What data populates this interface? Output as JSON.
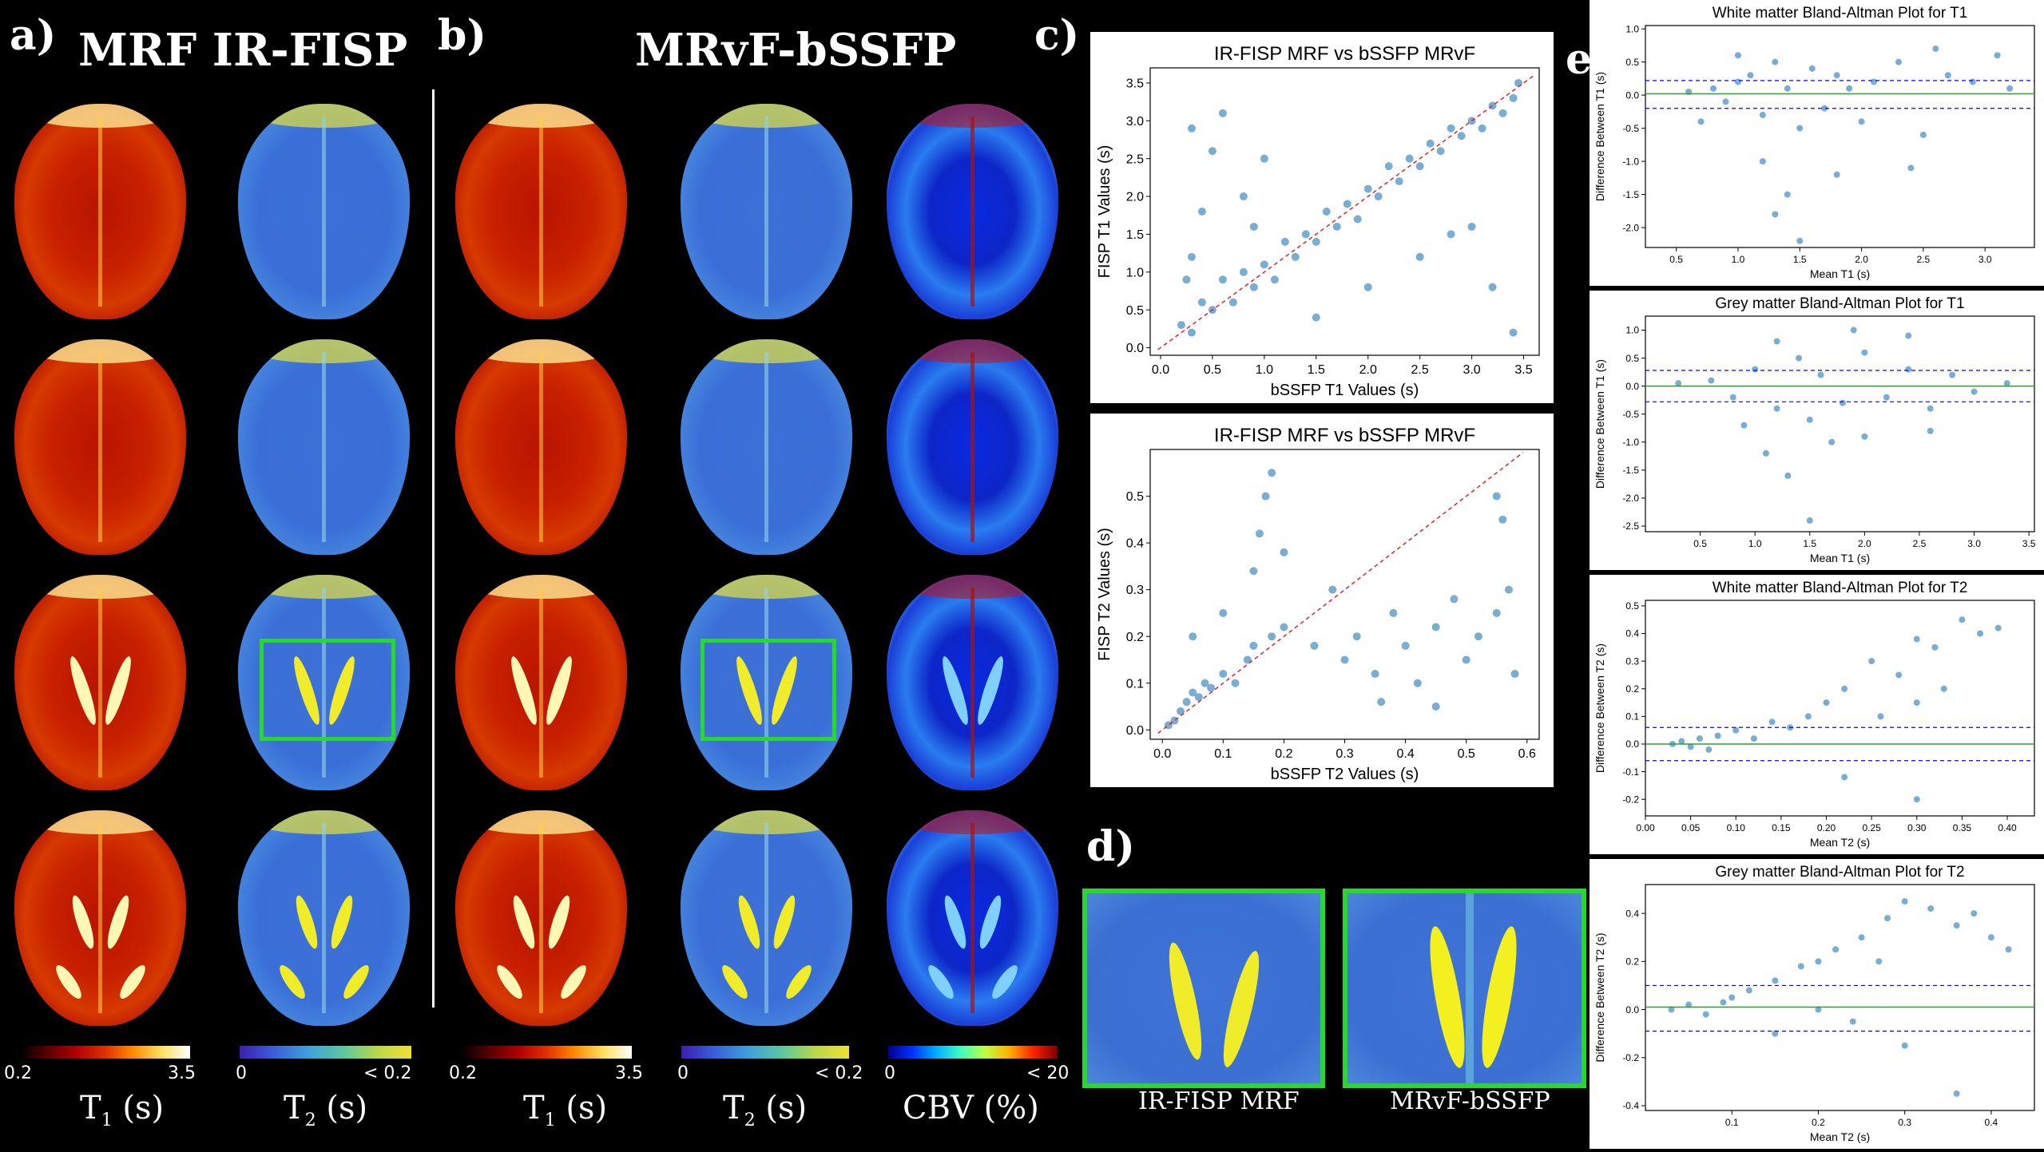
{
  "panels": {
    "a": {
      "label": "a)",
      "title": "MRF IR-FISP"
    },
    "b": {
      "label": "b)",
      "title": "MRvF-bSSFP"
    },
    "c": {
      "label": "c)"
    },
    "d": {
      "label": "d)"
    },
    "e": {
      "label": "e)"
    }
  },
  "colorbars": {
    "t1_a": {
      "min": "0.2",
      "max": "3.5",
      "unit_main": "T",
      "unit_sub": "1",
      "unit_rest": " (s)"
    },
    "t2_a": {
      "min": "0",
      "max": "< 0.2",
      "unit_main": "T",
      "unit_sub": "2",
      "unit_rest": " (s)"
    },
    "t1_b": {
      "min": "0.2",
      "max": "3.5",
      "unit_main": "T",
      "unit_sub": "1",
      "unit_rest": " (s)"
    },
    "t2_b": {
      "min": "0",
      "max": "< 0.2",
      "unit_main": "T",
      "unit_sub": "2",
      "unit_rest": " (s)"
    },
    "cbv_b": {
      "min": "0",
      "max": "< 20",
      "unit": "CBV (%)"
    }
  },
  "colors": {
    "t1_map": "#c82000",
    "t2_map": "#3a6fd8",
    "cbv_map": "#0c26c8",
    "roi_box": "#28d82a",
    "scatter": "#1f77b4",
    "identity": "#d62728",
    "mean_line": "#2ca02c",
    "limits": "#0000ff"
  },
  "zoom": {
    "left_caption": "IR-FISP MRF",
    "right_caption": "MRvF-bSSFP"
  },
  "chart_data": [
    {
      "type": "scatter",
      "title": "IR-FISP MRF vs bSSFP MRvF",
      "xlabel": "bSSFP T1 Values (s)",
      "ylabel": "FISP T1 Values (s)",
      "xlim": [
        -0.1,
        3.65
      ],
      "ylim": [
        -0.1,
        3.7
      ],
      "xticks": [
        "0.0",
        "0.5",
        "1.0",
        "1.5",
        "2.0",
        "2.5",
        "3.0",
        "3.5"
      ],
      "yticks": [
        "0.0",
        "0.5",
        "1.0",
        "1.5",
        "2.0",
        "2.5",
        "3.0",
        "3.5"
      ],
      "identity_line": true,
      "points": [
        [
          0.2,
          0.3
        ],
        [
          0.3,
          0.2
        ],
        [
          0.4,
          0.6
        ],
        [
          0.5,
          0.5
        ],
        [
          0.6,
          0.9
        ],
        [
          0.7,
          0.6
        ],
        [
          0.8,
          1.0
        ],
        [
          0.9,
          0.8
        ],
        [
          1.0,
          1.1
        ],
        [
          1.1,
          0.9
        ],
        [
          1.2,
          1.4
        ],
        [
          1.3,
          1.2
        ],
        [
          1.4,
          1.5
        ],
        [
          1.5,
          1.4
        ],
        [
          1.6,
          1.8
        ],
        [
          1.7,
          1.6
        ],
        [
          1.8,
          1.9
        ],
        [
          1.9,
          1.7
        ],
        [
          2.0,
          2.1
        ],
        [
          2.1,
          2.0
        ],
        [
          2.2,
          2.4
        ],
        [
          2.3,
          2.2
        ],
        [
          2.4,
          2.5
        ],
        [
          2.5,
          2.4
        ],
        [
          2.6,
          2.7
        ],
        [
          2.7,
          2.6
        ],
        [
          2.8,
          2.9
        ],
        [
          2.9,
          2.8
        ],
        [
          3.0,
          3.0
        ],
        [
          3.1,
          2.9
        ],
        [
          3.2,
          3.2
        ],
        [
          3.3,
          3.1
        ],
        [
          3.4,
          3.3
        ],
        [
          3.45,
          3.5
        ],
        [
          0.3,
          1.2
        ],
        [
          0.4,
          1.8
        ],
        [
          0.5,
          2.6
        ],
        [
          0.3,
          2.9
        ],
        [
          0.6,
          3.1
        ],
        [
          0.8,
          2.0
        ],
        [
          1.0,
          2.5
        ],
        [
          1.5,
          0.4
        ],
        [
          2.0,
          0.8
        ],
        [
          2.5,
          1.2
        ],
        [
          3.0,
          1.6
        ],
        [
          3.4,
          0.2
        ],
        [
          3.2,
          0.8
        ],
        [
          2.8,
          1.5
        ],
        [
          0.25,
          0.9
        ],
        [
          0.9,
          1.6
        ]
      ]
    },
    {
      "type": "scatter",
      "title": "IR-FISP MRF vs bSSFP MRvF",
      "xlabel": "bSSFP T2 Values (s)",
      "ylabel": "FISP T2 Values (s)",
      "xlim": [
        -0.02,
        0.62
      ],
      "ylim": [
        -0.02,
        0.6
      ],
      "xticks": [
        "0.0",
        "0.1",
        "0.2",
        "0.3",
        "0.4",
        "0.5",
        "0.6"
      ],
      "yticks": [
        "0.0",
        "0.1",
        "0.2",
        "0.3",
        "0.4",
        "0.5"
      ],
      "identity_line": true,
      "points": [
        [
          0.01,
          0.01
        ],
        [
          0.02,
          0.02
        ],
        [
          0.03,
          0.04
        ],
        [
          0.04,
          0.06
        ],
        [
          0.05,
          0.08
        ],
        [
          0.06,
          0.07
        ],
        [
          0.07,
          0.1
        ],
        [
          0.08,
          0.09
        ],
        [
          0.1,
          0.12
        ],
        [
          0.12,
          0.1
        ],
        [
          0.14,
          0.15
        ],
        [
          0.15,
          0.18
        ],
        [
          0.18,
          0.2
        ],
        [
          0.2,
          0.22
        ],
        [
          0.25,
          0.18
        ],
        [
          0.3,
          0.15
        ],
        [
          0.32,
          0.2
        ],
        [
          0.35,
          0.12
        ],
        [
          0.38,
          0.25
        ],
        [
          0.4,
          0.18
        ],
        [
          0.42,
          0.1
        ],
        [
          0.45,
          0.22
        ],
        [
          0.48,
          0.28
        ],
        [
          0.5,
          0.15
        ],
        [
          0.52,
          0.2
        ],
        [
          0.55,
          0.25
        ],
        [
          0.57,
          0.3
        ],
        [
          0.58,
          0.12
        ],
        [
          0.17,
          0.5
        ],
        [
          0.18,
          0.55
        ],
        [
          0.16,
          0.42
        ],
        [
          0.2,
          0.38
        ],
        [
          0.15,
          0.34
        ],
        [
          0.28,
          0.3
        ],
        [
          0.45,
          0.05
        ],
        [
          0.36,
          0.06
        ],
        [
          0.55,
          0.5
        ],
        [
          0.56,
          0.45
        ],
        [
          0.1,
          0.25
        ],
        [
          0.05,
          0.2
        ]
      ]
    },
    {
      "type": "scatter",
      "title": "White matter Bland-Altman Plot for T1",
      "xlabel": "Mean T1 (s)",
      "ylabel": "Difference Between T1 (s)",
      "xlim": [
        0.25,
        3.4
      ],
      "ylim": [
        -2.3,
        1.05
      ],
      "xticks": [
        "0.5",
        "1.0",
        "1.5",
        "2.0",
        "2.5",
        "3.0"
      ],
      "yticks": [
        "1.0",
        "0.5",
        "0.0",
        "-0.5",
        "-1.0",
        "-1.5",
        "-2.0"
      ],
      "mean_line": 0.02,
      "limits": [
        0.22,
        -0.2
      ],
      "points": [
        [
          0.6,
          0.05
        ],
        [
          0.8,
          0.1
        ],
        [
          0.9,
          -0.1
        ],
        [
          1.0,
          0.2
        ],
        [
          1.1,
          0.3
        ],
        [
          1.2,
          -0.3
        ],
        [
          1.3,
          0.5
        ],
        [
          1.4,
          0.1
        ],
        [
          1.5,
          -0.5
        ],
        [
          1.6,
          0.4
        ],
        [
          1.7,
          -0.2
        ],
        [
          1.8,
          0.3
        ],
        [
          1.9,
          0.1
        ],
        [
          2.0,
          -0.4
        ],
        [
          2.1,
          0.2
        ],
        [
          2.3,
          0.5
        ],
        [
          2.5,
          -0.6
        ],
        [
          2.7,
          0.3
        ],
        [
          2.9,
          0.2
        ],
        [
          3.1,
          0.6
        ],
        [
          3.2,
          0.1
        ],
        [
          1.2,
          -1.0
        ],
        [
          1.4,
          -1.5
        ],
        [
          1.5,
          -2.2
        ],
        [
          1.3,
          -1.8
        ],
        [
          1.8,
          -1.2
        ],
        [
          2.4,
          -1.1
        ],
        [
          0.7,
          -0.4
        ],
        [
          1.0,
          0.6
        ],
        [
          2.6,
          0.7
        ]
      ]
    },
    {
      "type": "scatter",
      "title": "Grey matter Bland-Altman Plot for T1",
      "xlabel": "Mean T1 (s)",
      "ylabel": "Difference Between T1 (s)",
      "xlim": [
        0.0,
        3.55
      ],
      "ylim": [
        -2.6,
        1.25
      ],
      "xticks": [
        "0.5",
        "1.0",
        "1.5",
        "2.0",
        "2.5",
        "3.0",
        "3.5"
      ],
      "yticks": [
        "1.0",
        "0.5",
        "0.0",
        "-0.5",
        "-1.0",
        "-1.5",
        "-2.0",
        "-2.5"
      ],
      "mean_line": 0.0,
      "limits": [
        0.28,
        -0.28
      ],
      "points": [
        [
          0.3,
          0.05
        ],
        [
          0.6,
          0.1
        ],
        [
          0.8,
          -0.2
        ],
        [
          1.0,
          0.3
        ],
        [
          1.2,
          -0.4
        ],
        [
          1.4,
          0.5
        ],
        [
          1.5,
          -0.6
        ],
        [
          1.6,
          0.2
        ],
        [
          1.8,
          -0.3
        ],
        [
          2.0,
          0.6
        ],
        [
          2.2,
          -0.2
        ],
        [
          2.4,
          0.3
        ],
        [
          2.6,
          -0.4
        ],
        [
          2.8,
          0.2
        ],
        [
          3.0,
          -0.1
        ],
        [
          3.3,
          0.05
        ],
        [
          1.1,
          -1.2
        ],
        [
          1.3,
          -1.6
        ],
        [
          1.5,
          -2.4
        ],
        [
          1.7,
          -1.0
        ],
        [
          2.0,
          -0.9
        ],
        [
          2.4,
          0.9
        ],
        [
          1.9,
          1.0
        ],
        [
          2.6,
          -0.8
        ],
        [
          0.9,
          -0.7
        ],
        [
          1.2,
          0.8
        ]
      ]
    },
    {
      "type": "scatter",
      "title": "White matter Bland-Altman Plot for T2",
      "xlabel": "Mean T2 (s)",
      "ylabel": "Difference Between T2 (s)",
      "xlim": [
        0.0,
        0.43
      ],
      "ylim": [
        -0.26,
        0.52
      ],
      "xticks": [
        "0.00",
        "0.05",
        "0.10",
        "0.15",
        "0.20",
        "0.25",
        "0.30",
        "0.35",
        "0.40"
      ],
      "yticks": [
        "0.5",
        "0.4",
        "0.3",
        "0.2",
        "0.1",
        "0.0",
        "-0.1",
        "-0.2"
      ],
      "mean_line": 0.0,
      "limits": [
        0.06,
        -0.06
      ],
      "points": [
        [
          0.03,
          0.0
        ],
        [
          0.04,
          0.01
        ],
        [
          0.05,
          -0.01
        ],
        [
          0.06,
          0.02
        ],
        [
          0.07,
          -0.02
        ],
        [
          0.08,
          0.03
        ],
        [
          0.1,
          0.05
        ],
        [
          0.12,
          0.02
        ],
        [
          0.14,
          0.08
        ],
        [
          0.16,
          0.06
        ],
        [
          0.2,
          0.15
        ],
        [
          0.22,
          0.2
        ],
        [
          0.25,
          0.3
        ],
        [
          0.28,
          0.25
        ],
        [
          0.3,
          0.38
        ],
        [
          0.32,
          0.35
        ],
        [
          0.35,
          0.45
        ],
        [
          0.37,
          0.4
        ],
        [
          0.39,
          0.42
        ],
        [
          0.3,
          0.15
        ],
        [
          0.26,
          0.1
        ],
        [
          0.22,
          -0.12
        ],
        [
          0.3,
          -0.2
        ],
        [
          0.18,
          0.1
        ],
        [
          0.33,
          0.2
        ]
      ]
    },
    {
      "type": "scatter",
      "title": "Grey matter Bland-Altman Plot for T2",
      "xlabel": "Mean T2 (s)",
      "ylabel": "Difference Between T2 (s)",
      "xlim": [
        0.0,
        0.45
      ],
      "ylim": [
        -0.42,
        0.52
      ],
      "xticks": [
        "0.1",
        "0.2",
        "0.3",
        "0.4"
      ],
      "yticks": [
        "0.4",
        "0.2",
        "0.0",
        "-0.2",
        "-0.4"
      ],
      "mean_line": 0.01,
      "limits": [
        0.1,
        -0.09
      ],
      "points": [
        [
          0.03,
          0.0
        ],
        [
          0.05,
          0.02
        ],
        [
          0.07,
          -0.02
        ],
        [
          0.09,
          0.03
        ],
        [
          0.1,
          0.05
        ],
        [
          0.12,
          0.08
        ],
        [
          0.15,
          0.12
        ],
        [
          0.18,
          0.18
        ],
        [
          0.2,
          0.2
        ],
        [
          0.22,
          0.25
        ],
        [
          0.25,
          0.3
        ],
        [
          0.28,
          0.38
        ],
        [
          0.3,
          0.45
        ],
        [
          0.33,
          0.42
        ],
        [
          0.36,
          0.35
        ],
        [
          0.4,
          0.3
        ],
        [
          0.42,
          0.25
        ],
        [
          0.24,
          -0.05
        ],
        [
          0.3,
          -0.15
        ],
        [
          0.36,
          -0.35
        ],
        [
          0.2,
          0.0
        ],
        [
          0.38,
          0.4
        ],
        [
          0.15,
          -0.1
        ],
        [
          0.27,
          0.2
        ]
      ]
    }
  ]
}
